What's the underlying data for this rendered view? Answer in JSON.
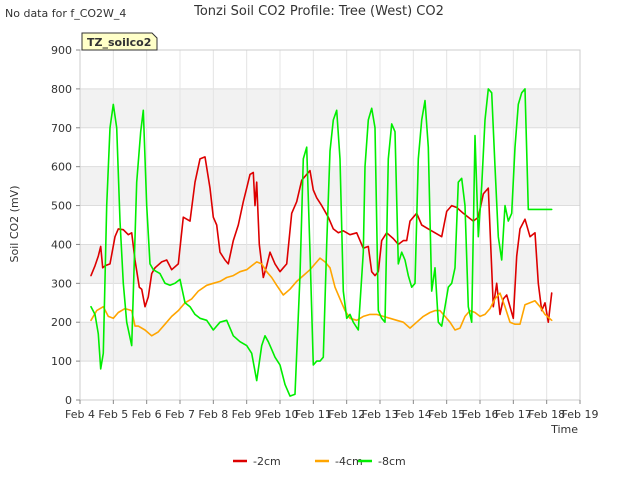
{
  "note": "No data for f_CO2W_4",
  "site_label": "TZ_soilco2",
  "chart_data": {
    "type": "line",
    "title": "Tonzi Soil CO2 Profile: Tree (West) CO2",
    "xlabel": "Time",
    "ylabel": "Soil CO2 (mV)",
    "xlim": [
      4,
      19
    ],
    "ylim": [
      0,
      900
    ],
    "x_ticks": [
      4,
      5,
      6,
      7,
      8,
      9,
      10,
      11,
      12,
      13,
      14,
      15,
      16,
      17,
      18,
      19
    ],
    "x_tick_labels": [
      "Feb 4",
      "Feb 5",
      "Feb 6",
      "Feb 7",
      "Feb 8",
      "Feb 9",
      "Feb 10",
      "Feb 11",
      "Feb 12",
      "Feb 13",
      "Feb 14",
      "Feb 15",
      "Feb 16",
      "Feb 17",
      "Feb 18",
      "Feb 19"
    ],
    "y_ticks": [
      0,
      100,
      200,
      300,
      400,
      500,
      600,
      700,
      800,
      900
    ],
    "y_tick_labels": [
      "0",
      "100",
      "200",
      "300",
      "400",
      "500",
      "600",
      "700",
      "800",
      "900"
    ],
    "grid": true,
    "legend_position": "bottom-center",
    "series": [
      {
        "name": "-2cm",
        "color": "#dd0000",
        "x": [
          4.33,
          4.45,
          4.55,
          4.62,
          4.68,
          4.75,
          4.9,
          5.05,
          5.15,
          5.3,
          5.45,
          5.55,
          5.65,
          5.78,
          5.85,
          5.95,
          6.05,
          6.15,
          6.25,
          6.45,
          6.6,
          6.75,
          6.95,
          7.1,
          7.3,
          7.45,
          7.6,
          7.75,
          7.9,
          8.0,
          8.1,
          8.2,
          8.35,
          8.45,
          8.6,
          8.75,
          8.9,
          9.0,
          9.1,
          9.2,
          9.25,
          9.3,
          9.38,
          9.5,
          9.6,
          9.7,
          9.85,
          10.0,
          10.1,
          10.2,
          10.35,
          10.5,
          10.65,
          10.8,
          10.9,
          11.0,
          11.1,
          11.25,
          11.45,
          11.6,
          11.75,
          11.9,
          12.1,
          12.3,
          12.5,
          12.65,
          12.75,
          12.85,
          12.95,
          13.05,
          13.2,
          13.4,
          13.55,
          13.7,
          13.8,
          13.9,
          14.0,
          14.1,
          14.25,
          14.45,
          14.65,
          14.85,
          15.0,
          15.15,
          15.3,
          15.5,
          15.65,
          15.8,
          15.95,
          16.1,
          16.25,
          16.4,
          16.5,
          16.6,
          16.7,
          16.8,
          16.9,
          17.0,
          17.1,
          17.2,
          17.35,
          17.5,
          17.65,
          17.75,
          17.85,
          17.95,
          18.05,
          18.15
        ],
        "values": [
          320,
          345,
          370,
          395,
          340,
          345,
          350,
          420,
          440,
          438,
          425,
          430,
          360,
          290,
          285,
          240,
          265,
          325,
          340,
          355,
          360,
          335,
          350,
          470,
          460,
          560,
          620,
          625,
          545,
          470,
          450,
          380,
          360,
          350,
          410,
          450,
          510,
          545,
          580,
          585,
          500,
          560,
          400,
          315,
          345,
          380,
          350,
          330,
          340,
          350,
          480,
          510,
          565,
          580,
          590,
          540,
          520,
          500,
          470,
          440,
          430,
          435,
          425,
          430,
          390,
          395,
          330,
          320,
          330,
          410,
          430,
          415,
          400,
          410,
          410,
          460,
          470,
          480,
          450,
          440,
          430,
          420,
          485,
          500,
          495,
          480,
          470,
          460,
          470,
          530,
          545,
          240,
          300,
          220,
          260,
          270,
          240,
          210,
          370,
          440,
          465,
          420,
          430,
          300,
          230,
          250,
          200,
          275
        ]
      },
      {
        "name": "-4cm",
        "color": "#ffa500",
        "x": [
          4.33,
          4.5,
          4.7,
          4.85,
          5.0,
          5.15,
          5.35,
          5.55,
          5.65,
          5.75,
          5.95,
          6.15,
          6.35,
          6.55,
          6.75,
          6.95,
          7.15,
          7.35,
          7.55,
          7.8,
          8.0,
          8.2,
          8.4,
          8.6,
          8.8,
          9.0,
          9.15,
          9.3,
          9.45,
          9.6,
          9.75,
          9.9,
          10.1,
          10.3,
          10.5,
          10.7,
          10.9,
          11.05,
          11.2,
          11.35,
          11.5,
          11.65,
          11.8,
          11.95,
          12.1,
          12.3,
          12.5,
          12.7,
          12.9,
          13.1,
          13.3,
          13.5,
          13.7,
          13.9,
          14.1,
          14.3,
          14.5,
          14.65,
          14.8,
          14.95,
          15.1,
          15.25,
          15.4,
          15.55,
          15.7,
          15.85,
          16.0,
          16.15,
          16.3,
          16.45,
          16.6,
          16.75,
          16.9,
          17.05,
          17.2,
          17.35,
          17.5,
          17.65,
          17.8,
          17.95,
          18.15
        ],
        "values": [
          205,
          230,
          240,
          215,
          210,
          225,
          235,
          230,
          190,
          190,
          180,
          165,
          175,
          195,
          215,
          230,
          250,
          260,
          280,
          295,
          300,
          305,
          315,
          320,
          330,
          335,
          345,
          355,
          350,
          330,
          315,
          295,
          270,
          285,
          305,
          320,
          335,
          350,
          365,
          355,
          340,
          290,
          260,
          230,
          210,
          205,
          215,
          220,
          220,
          215,
          210,
          205,
          200,
          185,
          200,
          215,
          225,
          230,
          230,
          215,
          200,
          180,
          185,
          215,
          230,
          225,
          215,
          220,
          235,
          260,
          275,
          240,
          200,
          195,
          195,
          245,
          250,
          255,
          240,
          220,
          205
        ]
      },
      {
        "name": "-8cm",
        "color": "#00ee00",
        "x": [
          4.33,
          4.45,
          4.55,
          4.62,
          4.7,
          4.8,
          4.9,
          5.0,
          5.1,
          5.2,
          5.3,
          5.4,
          5.55,
          5.7,
          5.82,
          5.9,
          6.0,
          6.1,
          6.2,
          6.3,
          6.4,
          6.55,
          6.7,
          6.85,
          7.0,
          7.15,
          7.3,
          7.45,
          7.6,
          7.8,
          8.0,
          8.2,
          8.4,
          8.6,
          8.8,
          9.0,
          9.15,
          9.3,
          9.45,
          9.55,
          9.65,
          9.75,
          9.85,
          10.0,
          10.15,
          10.3,
          10.45,
          10.6,
          10.7,
          10.8,
          10.9,
          11.0,
          11.1,
          11.2,
          11.3,
          11.4,
          11.5,
          11.6,
          11.7,
          11.8,
          11.9,
          12.0,
          12.1,
          12.2,
          12.35,
          12.5,
          12.55,
          12.65,
          12.75,
          12.85,
          12.95,
          13.05,
          13.15,
          13.25,
          13.35,
          13.45,
          13.55,
          13.65,
          13.75,
          13.85,
          13.95,
          14.05,
          14.15,
          14.25,
          14.35,
          14.45,
          14.55,
          14.65,
          14.75,
          14.85,
          14.95,
          15.05,
          15.15,
          15.25,
          15.35,
          15.45,
          15.55,
          15.65,
          15.75,
          15.85,
          15.95,
          16.05,
          16.15,
          16.25,
          16.35,
          16.45,
          16.55,
          16.65,
          16.75,
          16.85,
          16.95,
          17.05,
          17.15,
          17.25,
          17.35,
          17.45,
          17.55,
          17.65,
          17.75,
          17.85,
          17.95,
          18.05,
          18.15
        ],
        "values": [
          240,
          220,
          170,
          80,
          120,
          500,
          700,
          760,
          700,
          460,
          300,
          200,
          140,
          560,
          690,
          745,
          500,
          350,
          335,
          330,
          325,
          300,
          295,
          300,
          310,
          250,
          240,
          220,
          210,
          205,
          180,
          200,
          205,
          165,
          150,
          140,
          120,
          50,
          140,
          165,
          150,
          130,
          110,
          90,
          40,
          10,
          15,
          320,
          620,
          650,
          380,
          90,
          100,
          100,
          110,
          400,
          640,
          720,
          745,
          620,
          280,
          210,
          220,
          200,
          180,
          380,
          600,
          720,
          750,
          700,
          230,
          210,
          200,
          620,
          710,
          690,
          350,
          380,
          360,
          320,
          290,
          300,
          620,
          720,
          770,
          650,
          280,
          340,
          200,
          190,
          240,
          290,
          300,
          340,
          560,
          570,
          500,
          240,
          200,
          680,
          420,
          550,
          720,
          800,
          790,
          600,
          420,
          360,
          500,
          460,
          480,
          650,
          760,
          790,
          800,
          490,
          490,
          490,
          490,
          490,
          490,
          490,
          490
        ]
      }
    ]
  }
}
